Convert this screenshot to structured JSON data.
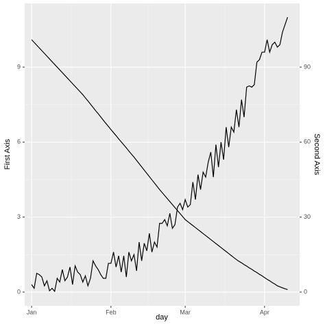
{
  "chart_data": {
    "type": "line",
    "xlabel": "day",
    "ylabel": "First Axis",
    "y2label": "Second Axis",
    "x": [
      0,
      1,
      2,
      3,
      4,
      5,
      6,
      7,
      8,
      9,
      10,
      11,
      12,
      13,
      14,
      15,
      16,
      17,
      18,
      19,
      20,
      21,
      22,
      23,
      24,
      25,
      26,
      27,
      28,
      29,
      30,
      31,
      32,
      33,
      34,
      35,
      36,
      37,
      38,
      39,
      40,
      41,
      42,
      43,
      44,
      45,
      46,
      47,
      48,
      49,
      50,
      51,
      52,
      53,
      54,
      55,
      56,
      57,
      58,
      59,
      60,
      61,
      62,
      63,
      64,
      65,
      66,
      67,
      68,
      69,
      70,
      71,
      72,
      73,
      74,
      75,
      76,
      77,
      78,
      79,
      80,
      81,
      82,
      83,
      84,
      85,
      86,
      87,
      88,
      89,
      90,
      91,
      92,
      93,
      94,
      95,
      96,
      97,
      98,
      99,
      100
    ],
    "xlim": [
      -2.7,
      104.7
    ],
    "xticks": [
      {
        "value": 0,
        "label": "Jan"
      },
      {
        "value": 31,
        "label": "Feb"
      },
      {
        "value": 60,
        "label": "Mar"
      },
      {
        "value": 91,
        "label": "Apr"
      }
    ],
    "ylim": [
      -0.55,
      11.55
    ],
    "yticks": [
      0,
      3,
      6,
      9
    ],
    "y2lim": [
      -5.5,
      115.5
    ],
    "y2ticks": [
      0,
      30,
      60,
      90
    ],
    "grid": true,
    "series": [
      {
        "color": "#000000",
        "values": [
          10.1,
          9.99,
          9.88,
          9.77,
          9.66,
          9.55,
          9.44,
          9.33,
          9.22,
          9.11,
          9.0,
          8.89,
          8.78,
          8.67,
          8.56,
          8.45,
          8.34,
          8.23,
          8.12,
          8.01,
          7.9,
          7.77,
          7.65,
          7.52,
          7.39,
          7.26,
          7.14,
          7.01,
          6.88,
          6.75,
          6.63,
          6.5,
          6.38,
          6.26,
          6.13,
          6.01,
          5.89,
          5.77,
          5.64,
          5.52,
          5.4,
          5.27,
          5.14,
          5.01,
          4.88,
          4.75,
          4.62,
          4.49,
          4.36,
          4.23,
          4.1,
          3.98,
          3.86,
          3.74,
          3.62,
          3.5,
          3.38,
          3.26,
          3.14,
          3.02,
          2.9,
          2.82,
          2.74,
          2.66,
          2.58,
          2.5,
          2.42,
          2.34,
          2.26,
          2.18,
          2.1,
          2.02,
          1.94,
          1.86,
          1.78,
          1.7,
          1.62,
          1.54,
          1.46,
          1.38,
          1.3,
          1.23,
          1.17,
          1.1,
          1.04,
          0.97,
          0.91,
          0.84,
          0.78,
          0.71,
          0.65,
          0.58,
          0.51,
          0.45,
          0.38,
          0.32,
          0.25,
          0.21,
          0.17,
          0.13,
          0.1
        ]
      },
      {
        "color": "#000000",
        "axis": "y2",
        "values": [
          3,
          1.5,
          7.5,
          7,
          6,
          2.5,
          4.5,
          0.5,
          1.5,
          0.3,
          5.5,
          4,
          9,
          4.5,
          6,
          10,
          3,
          10.5,
          8,
          7,
          4,
          6.5,
          2.5,
          5.5,
          12.5,
          10.5,
          9,
          7,
          5.5,
          5.5,
          11.5,
          11.5,
          16,
          10,
          14.5,
          8,
          14.5,
          6,
          16,
          12.5,
          15,
          8.5,
          20,
          12.5,
          19.5,
          16.5,
          23.5,
          16,
          20,
          18,
          27.5,
          27.5,
          29,
          26.5,
          31.5,
          25.5,
          27,
          34,
          35.5,
          33,
          37,
          34,
          35,
          44,
          37,
          47,
          41,
          48,
          46,
          52,
          56,
          46,
          59,
          50,
          60,
          53,
          66,
          58,
          66,
          64,
          73,
          66,
          77,
          70,
          82,
          82.5,
          82,
          83,
          92,
          93,
          96,
          96,
          101,
          96,
          99,
          100,
          98,
          99,
          104,
          107,
          110
        ]
      }
    ]
  }
}
